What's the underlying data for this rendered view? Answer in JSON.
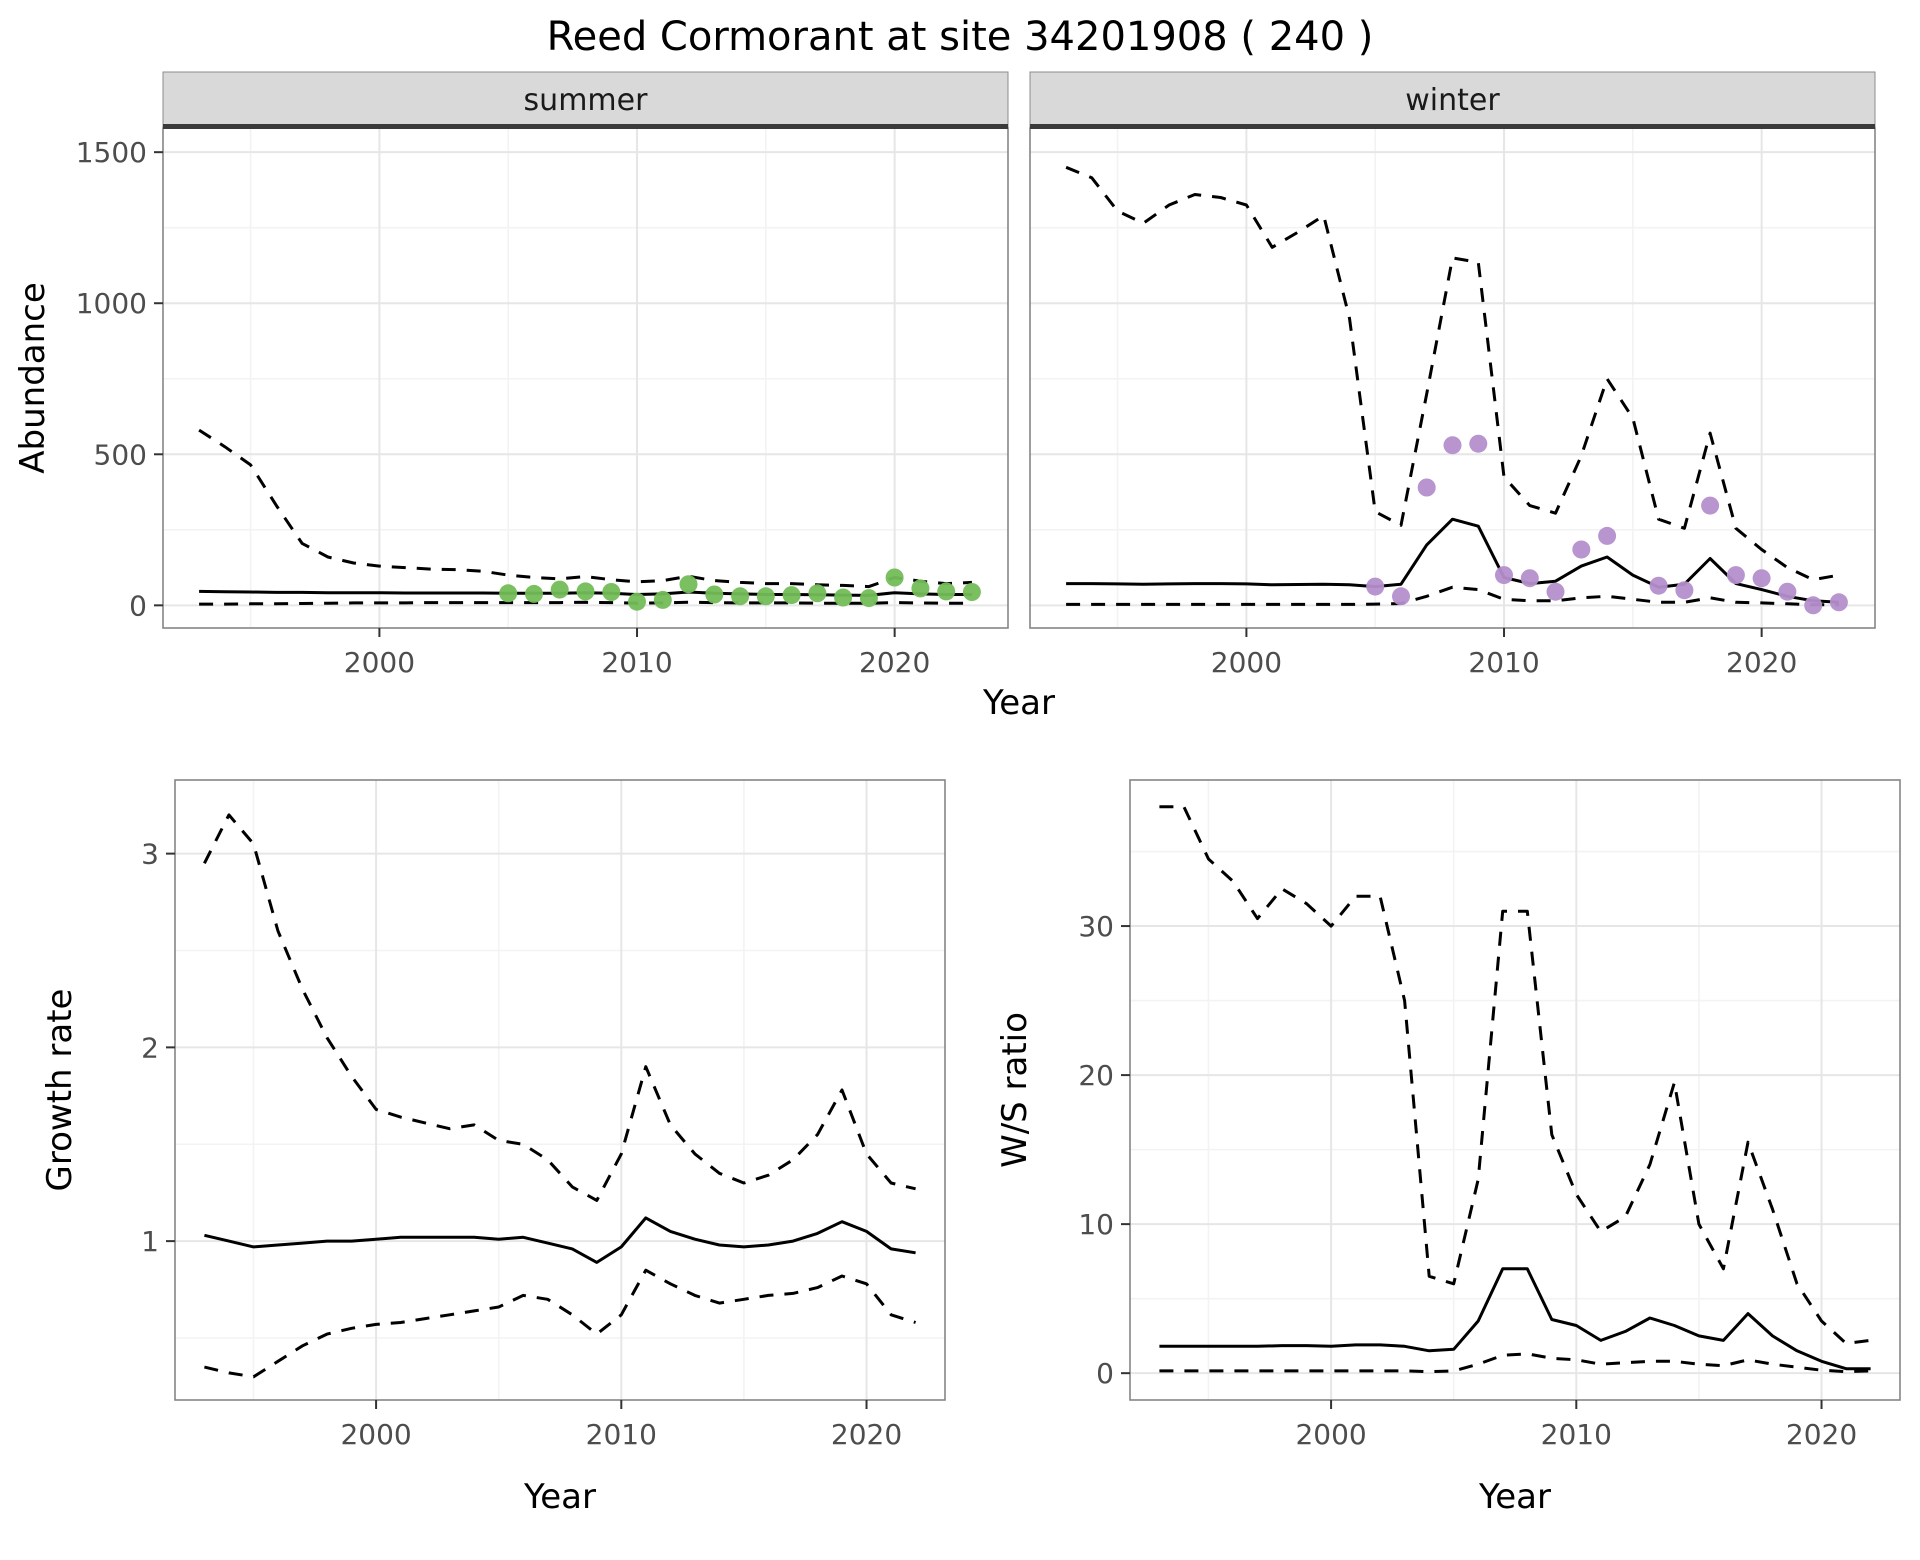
{
  "title": "Reed Cormorant at site 34201908 ( 240 )",
  "axes": {
    "x_label": "Year",
    "abundance_label": "Abundance",
    "growth_label": "Growth rate",
    "ws_label": "W/S ratio"
  },
  "facets": {
    "summer": "summer",
    "winter": "winter"
  },
  "colors": {
    "summer_points": "#73BD57",
    "winter_points": "#B48FCB",
    "line": "#000000",
    "grid_major": "#E6E6E6",
    "grid_minor": "#F3F3F3",
    "strip_bg": "#D9D9D9",
    "strip_border": "#8C8C8C",
    "strip_underline": "#3A3A3A",
    "panel_border": "#858585",
    "panel_bg": "#FFFFFF",
    "tick_text": "#4D4D4D",
    "axis_text": "#000000"
  },
  "chart_data": [
    {
      "id": "abundance_summer",
      "type": "line",
      "facet_label": "summer",
      "xlabel": "Year",
      "ylabel": "Abundance",
      "xlim": [
        1991.6,
        2024.4
      ],
      "ylim": [
        -75,
        1580
      ],
      "xticks": [
        2000,
        2010,
        2020
      ],
      "xticks_minor": [
        1995,
        2005,
        2015
      ],
      "yticks": [
        0,
        500,
        1000,
        1500
      ],
      "yticks_minor": [
        250,
        750,
        1250
      ],
      "grid": true,
      "legend": "none",
      "years": [
        1993,
        1994,
        1995,
        1996,
        1997,
        1998,
        1999,
        2000,
        2001,
        2002,
        2003,
        2004,
        2005,
        2006,
        2007,
        2008,
        2009,
        2010,
        2011,
        2012,
        2013,
        2014,
        2015,
        2016,
        2017,
        2018,
        2019,
        2020,
        2021,
        2022,
        2023
      ],
      "series": [
        {
          "name": "upper_95ci",
          "style": "dashed",
          "values": [
            580,
            525,
            465,
            330,
            205,
            160,
            140,
            130,
            125,
            120,
            118,
            113,
            100,
            92,
            88,
            95,
            85,
            78,
            82,
            96,
            82,
            76,
            72,
            72,
            68,
            66,
            62,
            92,
            80,
            72,
            76
          ]
        },
        {
          "name": "median",
          "style": "solid",
          "values": [
            46,
            45,
            44,
            43,
            43,
            42,
            42,
            42,
            41,
            41,
            41,
            41,
            40,
            40,
            40,
            42,
            40,
            36,
            38,
            44,
            40,
            38,
            36,
            36,
            35,
            34,
            33,
            42,
            38,
            36,
            36
          ]
        },
        {
          "name": "lower_95ci",
          "style": "dashed",
          "values": [
            4,
            4,
            5,
            5,
            6,
            7,
            8,
            8,
            8,
            9,
            9,
            9,
            9,
            9,
            9,
            10,
            9,
            7,
            8,
            10,
            9,
            8,
            8,
            8,
            7,
            7,
            7,
            9,
            8,
            7,
            7
          ]
        }
      ],
      "points": {
        "name": "observed_counts",
        "color_key": "summer_points",
        "x": [
          2005,
          2006,
          2007,
          2008,
          2009,
          2010,
          2011,
          2012,
          2013,
          2014,
          2015,
          2016,
          2017,
          2018,
          2019,
          2020,
          2021,
          2022,
          2023
        ],
        "y": [
          40,
          38,
          52,
          46,
          44,
          12,
          18,
          70,
          36,
          30,
          30,
          34,
          40,
          26,
          24,
          92,
          56,
          46,
          44
        ]
      }
    },
    {
      "id": "abundance_winter",
      "type": "line",
      "facet_label": "winter",
      "xlabel": "Year",
      "ylabel": "Abundance",
      "xlim": [
        1991.6,
        2024.4
      ],
      "ylim": [
        -75,
        1580
      ],
      "xticks": [
        2000,
        2010,
        2020
      ],
      "xticks_minor": [
        1995,
        2005,
        2015
      ],
      "yticks": [
        0,
        500,
        1000,
        1500
      ],
      "yticks_minor": [
        250,
        750,
        1250
      ],
      "grid": true,
      "legend": "none",
      "years": [
        1993,
        1994,
        1995,
        1996,
        1997,
        1998,
        1999,
        2000,
        2001,
        2002,
        2003,
        2004,
        2005,
        2006,
        2007,
        2008,
        2009,
        2010,
        2011,
        2012,
        2013,
        2014,
        2015,
        2016,
        2017,
        2018,
        2019,
        2020,
        2021,
        2022,
        2023
      ],
      "series": [
        {
          "name": "upper_95ci",
          "style": "dashed",
          "values": [
            1450,
            1415,
            1305,
            1265,
            1325,
            1360,
            1350,
            1325,
            1185,
            1235,
            1290,
            950,
            310,
            265,
            700,
            1150,
            1135,
            425,
            330,
            305,
            495,
            750,
            620,
            285,
            255,
            570,
            255,
            185,
            125,
            85,
            100
          ]
        },
        {
          "name": "median",
          "style": "solid",
          "values": [
            72,
            72,
            71,
            70,
            71,
            72,
            72,
            71,
            68,
            69,
            70,
            68,
            62,
            70,
            200,
            285,
            262,
            92,
            72,
            80,
            130,
            160,
            100,
            60,
            70,
            155,
            72,
            52,
            30,
            15,
            10
          ]
        },
        {
          "name": "lower_95ci",
          "style": "dashed",
          "values": [
            3,
            3,
            3,
            3,
            3,
            3,
            3,
            3,
            3,
            3,
            3,
            3,
            4,
            6,
            30,
            60,
            52,
            20,
            15,
            15,
            25,
            30,
            20,
            10,
            10,
            25,
            10,
            8,
            5,
            2,
            2
          ]
        }
      ],
      "points": {
        "name": "observed_counts",
        "color_key": "winter_points",
        "x": [
          2005,
          2006,
          2007,
          2008,
          2009,
          2010,
          2011,
          2012,
          2013,
          2014,
          2016,
          2017,
          2018,
          2019,
          2020,
          2021,
          2022,
          2023
        ],
        "y": [
          62,
          30,
          390,
          530,
          535,
          100,
          90,
          45,
          185,
          230,
          65,
          50,
          330,
          100,
          90,
          45,
          0,
          10
        ]
      }
    },
    {
      "id": "growth_rate",
      "type": "line",
      "facet_label": "",
      "xlabel": "Year",
      "ylabel": "Growth rate",
      "xlim": [
        1991.8,
        2023.2
      ],
      "ylim": [
        0.18,
        3.38
      ],
      "xticks": [
        2000,
        2010,
        2020
      ],
      "xticks_minor": [
        1995,
        2005,
        2015
      ],
      "yticks": [
        1,
        2,
        3
      ],
      "yticks_minor": [
        0.5,
        1.5,
        2.5
      ],
      "grid": true,
      "legend": "none",
      "years": [
        1993,
        1994,
        1995,
        1996,
        1997,
        1998,
        1999,
        2000,
        2001,
        2002,
        2003,
        2004,
        2005,
        2006,
        2007,
        2008,
        2009,
        2010,
        2011,
        2012,
        2013,
        2014,
        2015,
        2016,
        2017,
        2018,
        2019,
        2020,
        2021,
        2022
      ],
      "series": [
        {
          "name": "upper_95ci",
          "style": "dashed",
          "values": [
            2.95,
            3.2,
            3.05,
            2.6,
            2.3,
            2.05,
            1.85,
            1.68,
            1.64,
            1.61,
            1.58,
            1.6,
            1.52,
            1.5,
            1.42,
            1.28,
            1.21,
            1.45,
            1.9,
            1.6,
            1.45,
            1.35,
            1.3,
            1.34,
            1.42,
            1.55,
            1.78,
            1.45,
            1.3,
            1.27
          ]
        },
        {
          "name": "median",
          "style": "solid",
          "values": [
            1.03,
            1.0,
            0.97,
            0.98,
            0.99,
            1.0,
            1.0,
            1.01,
            1.02,
            1.02,
            1.02,
            1.02,
            1.01,
            1.02,
            0.99,
            0.96,
            0.89,
            0.97,
            1.12,
            1.05,
            1.01,
            0.98,
            0.97,
            0.98,
            1.0,
            1.04,
            1.1,
            1.05,
            0.96,
            0.94
          ]
        },
        {
          "name": "lower_95ci",
          "style": "dashed",
          "values": [
            0.35,
            0.32,
            0.3,
            0.38,
            0.46,
            0.52,
            0.55,
            0.57,
            0.58,
            0.6,
            0.62,
            0.64,
            0.66,
            0.72,
            0.7,
            0.62,
            0.52,
            0.62,
            0.85,
            0.78,
            0.72,
            0.68,
            0.7,
            0.72,
            0.73,
            0.76,
            0.82,
            0.78,
            0.62,
            0.58
          ]
        }
      ],
      "points": null
    },
    {
      "id": "ws_ratio",
      "type": "line",
      "facet_label": "",
      "xlabel": "Year",
      "ylabel": "W/S ratio",
      "xlim": [
        1991.8,
        2023.2
      ],
      "ylim": [
        -1.8,
        39.8
      ],
      "xticks": [
        2000,
        2010,
        2020
      ],
      "xticks_minor": [
        1995,
        2005,
        2015
      ],
      "yticks": [
        0,
        10,
        20,
        30
      ],
      "yticks_minor": [
        5,
        15,
        25,
        35
      ],
      "grid": true,
      "legend": "none",
      "years": [
        1993,
        1994,
        1995,
        1996,
        1997,
        1998,
        1999,
        2000,
        2001,
        2002,
        2003,
        2004,
        2005,
        2006,
        2007,
        2008,
        2009,
        2010,
        2011,
        2012,
        2013,
        2014,
        2015,
        2016,
        2017,
        2018,
        2019,
        2020,
        2021,
        2022
      ],
      "series": [
        {
          "name": "upper_95ci",
          "style": "dashed",
          "values": [
            38,
            38,
            34.5,
            33,
            30.5,
            32.5,
            31.5,
            30,
            32,
            32,
            25,
            6.5,
            6,
            13,
            31,
            31,
            16,
            12,
            9.5,
            10.5,
            14,
            19.5,
            10,
            7,
            15.5,
            11,
            6,
            3.5,
            2,
            2.2
          ]
        },
        {
          "name": "median",
          "style": "solid",
          "values": [
            1.8,
            1.8,
            1.8,
            1.8,
            1.8,
            1.85,
            1.85,
            1.8,
            1.9,
            1.9,
            1.8,
            1.5,
            1.6,
            3.5,
            7.0,
            7.0,
            3.6,
            3.2,
            2.2,
            2.8,
            3.7,
            3.2,
            2.5,
            2.2,
            4.0,
            2.5,
            1.5,
            0.8,
            0.3,
            0.3
          ]
        },
        {
          "name": "lower_95ci",
          "style": "dashed",
          "values": [
            0.15,
            0.15,
            0.15,
            0.15,
            0.15,
            0.15,
            0.15,
            0.15,
            0.15,
            0.15,
            0.15,
            0.1,
            0.15,
            0.6,
            1.2,
            1.3,
            1.0,
            0.9,
            0.6,
            0.7,
            0.8,
            0.8,
            0.6,
            0.5,
            0.9,
            0.6,
            0.4,
            0.2,
            0.1,
            0.15
          ]
        }
      ],
      "points": null
    }
  ]
}
